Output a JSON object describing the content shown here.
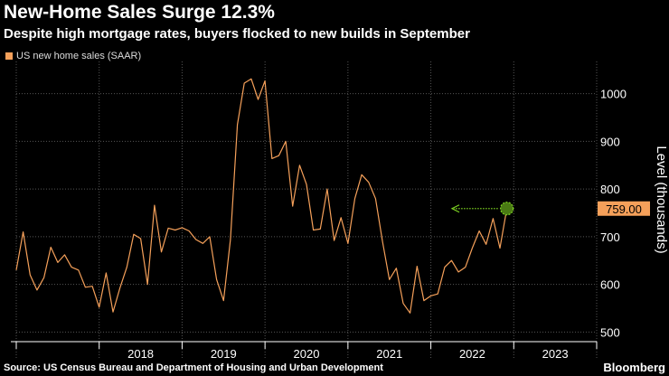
{
  "title": "New-Home Sales Surge 12.3%",
  "subtitle": "Despite high mortgage rates, buyers flocked to new builds in September",
  "legend_label": "US new home sales (SAAR)",
  "source": "Source: US Census Bureau and Department of Housing and Urban Development",
  "brand": "Bloomberg",
  "colors": {
    "background": "#000000",
    "line": "#f5a05a",
    "grid": "#555555",
    "annotation": "#7ed321",
    "label_bg": "#f5a05a"
  },
  "chart_data": {
    "type": "line",
    "title": "New-Home Sales Surge 12.3%",
    "subtitle": "Despite high mortgage rates, buyers flocked to new builds in September",
    "ylabel": "Level (thousands)",
    "xlabel": "",
    "ylim": [
      495,
      1060
    ],
    "yticks": [
      500,
      600,
      700,
      800,
      900,
      1000
    ],
    "ytick_labels": [
      "500",
      "600",
      "700",
      "800",
      "900",
      "1000"
    ],
    "xlim": [
      2017.0,
      2024.0
    ],
    "year_ticks": [
      2018,
      2019,
      2020,
      2021,
      2022,
      2023
    ],
    "year_labels": [
      "2018",
      "2019",
      "2020",
      "2021",
      "2022",
      "2023"
    ],
    "grid": true,
    "series": [
      {
        "name": "US new home sales (SAAR)",
        "start": 2017.0,
        "step": 0.0833333,
        "values": [
          630,
          710,
          620,
          588,
          614,
          678,
          646,
          662,
          636,
          630,
          594,
          596,
          552,
          624,
          542,
          592,
          636,
          705,
          696,
          600,
          766,
          668,
          718,
          714,
          719,
          712,
          694,
          686,
          700,
          610,
          566,
          694,
          935,
          1022,
          1031,
          988,
          1027,
          864,
          870,
          900,
          764,
          850,
          810,
          714,
          716,
          800,
          692,
          740,
          686,
          780,
          830,
          814,
          780,
          690,
          610,
          634,
          560,
          540,
          638,
          566,
          576,
          580,
          636,
          650,
          626,
          636,
          676,
          712,
          684,
          738,
          676,
          759
        ]
      }
    ],
    "annotation": {
      "label": "759.00",
      "value": 759
    }
  }
}
